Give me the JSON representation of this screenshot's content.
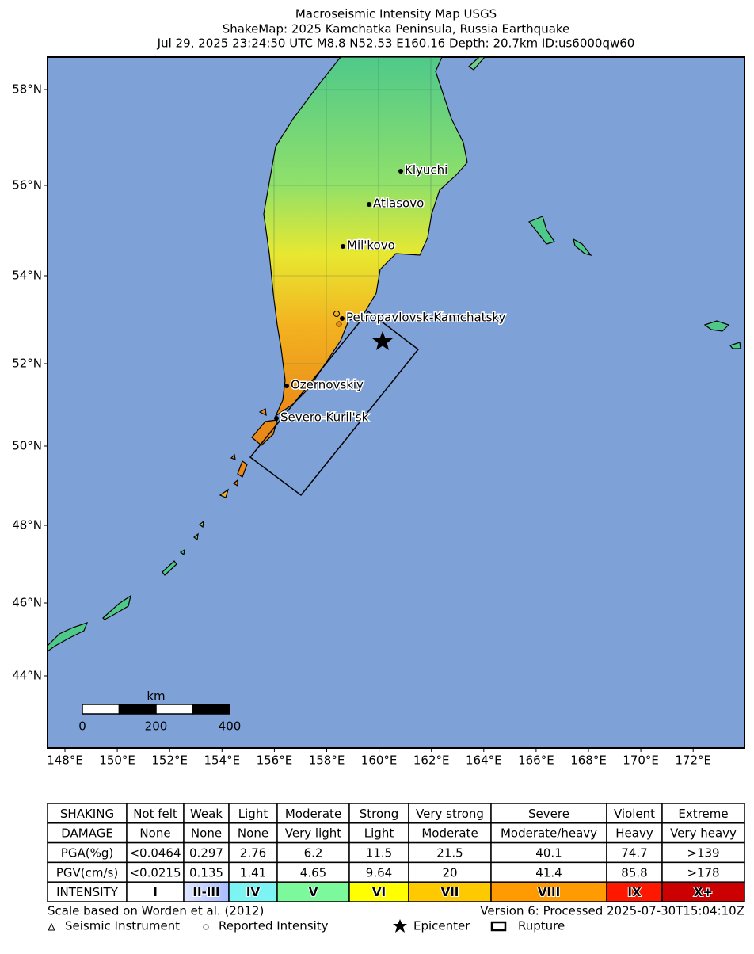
{
  "title": [
    "Macroseismic Intensity Map USGS",
    "ShakeMap: 2025 Kamchatka Peninsula, Russia Earthquake",
    "Jul 29, 2025 23:24:50 UTC M8.8 N52.53 E160.16 Depth: 20.7km ID:us6000qw60"
  ],
  "map": {
    "lat_labels": [
      "58°N",
      "56°N",
      "54°N",
      "52°N",
      "50°N",
      "48°N",
      "46°N",
      "44°N"
    ],
    "lon_labels": [
      "148°E",
      "150°E",
      "152°E",
      "154°E",
      "156°E",
      "158°E",
      "160°E",
      "162°E",
      "164°E",
      "166°E",
      "168°E",
      "170°E",
      "172°E"
    ],
    "places": [
      "Klyuchi",
      "Atlasovo",
      "Mil'kovo",
      "Petropavlovsk-Kamchatsky",
      "Ozernovskiy",
      "Severo-Kuril'sk"
    ],
    "scale": {
      "unit": "km",
      "labels": [
        "0",
        "200",
        "400"
      ]
    }
  },
  "legend_table": {
    "rows": [
      [
        "SHAKING",
        "Not felt",
        "Weak",
        "Light",
        "Moderate",
        "Strong",
        "Very strong",
        "Severe",
        "Violent",
        "Extreme"
      ],
      [
        "DAMAGE",
        "None",
        "None",
        "None",
        "Very light",
        "Light",
        "Moderate",
        "Moderate/heavy",
        "Heavy",
        "Very heavy"
      ],
      [
        "PGA(%g)",
        "<0.0464",
        "0.297",
        "2.76",
        "6.2",
        "11.5",
        "21.5",
        "40.1",
        "74.7",
        ">139"
      ],
      [
        "PGV(cm/s)",
        "<0.0215",
        "0.135",
        "1.41",
        "4.65",
        "9.64",
        "20",
        "41.4",
        "85.8",
        ">178"
      ],
      [
        "INTENSITY",
        "I",
        "II-III",
        "IV",
        "V",
        "VI",
        "VII",
        "VIII",
        "IX",
        "X+"
      ]
    ]
  },
  "footer": {
    "left": "Scale based on Worden et al. (2012)",
    "right": "Version 6: Processed 2025-07-30T15:04:10Z",
    "symbols": [
      "Seismic Instrument",
      "Reported Intensity",
      "Epicenter",
      "Rupture"
    ]
  }
}
